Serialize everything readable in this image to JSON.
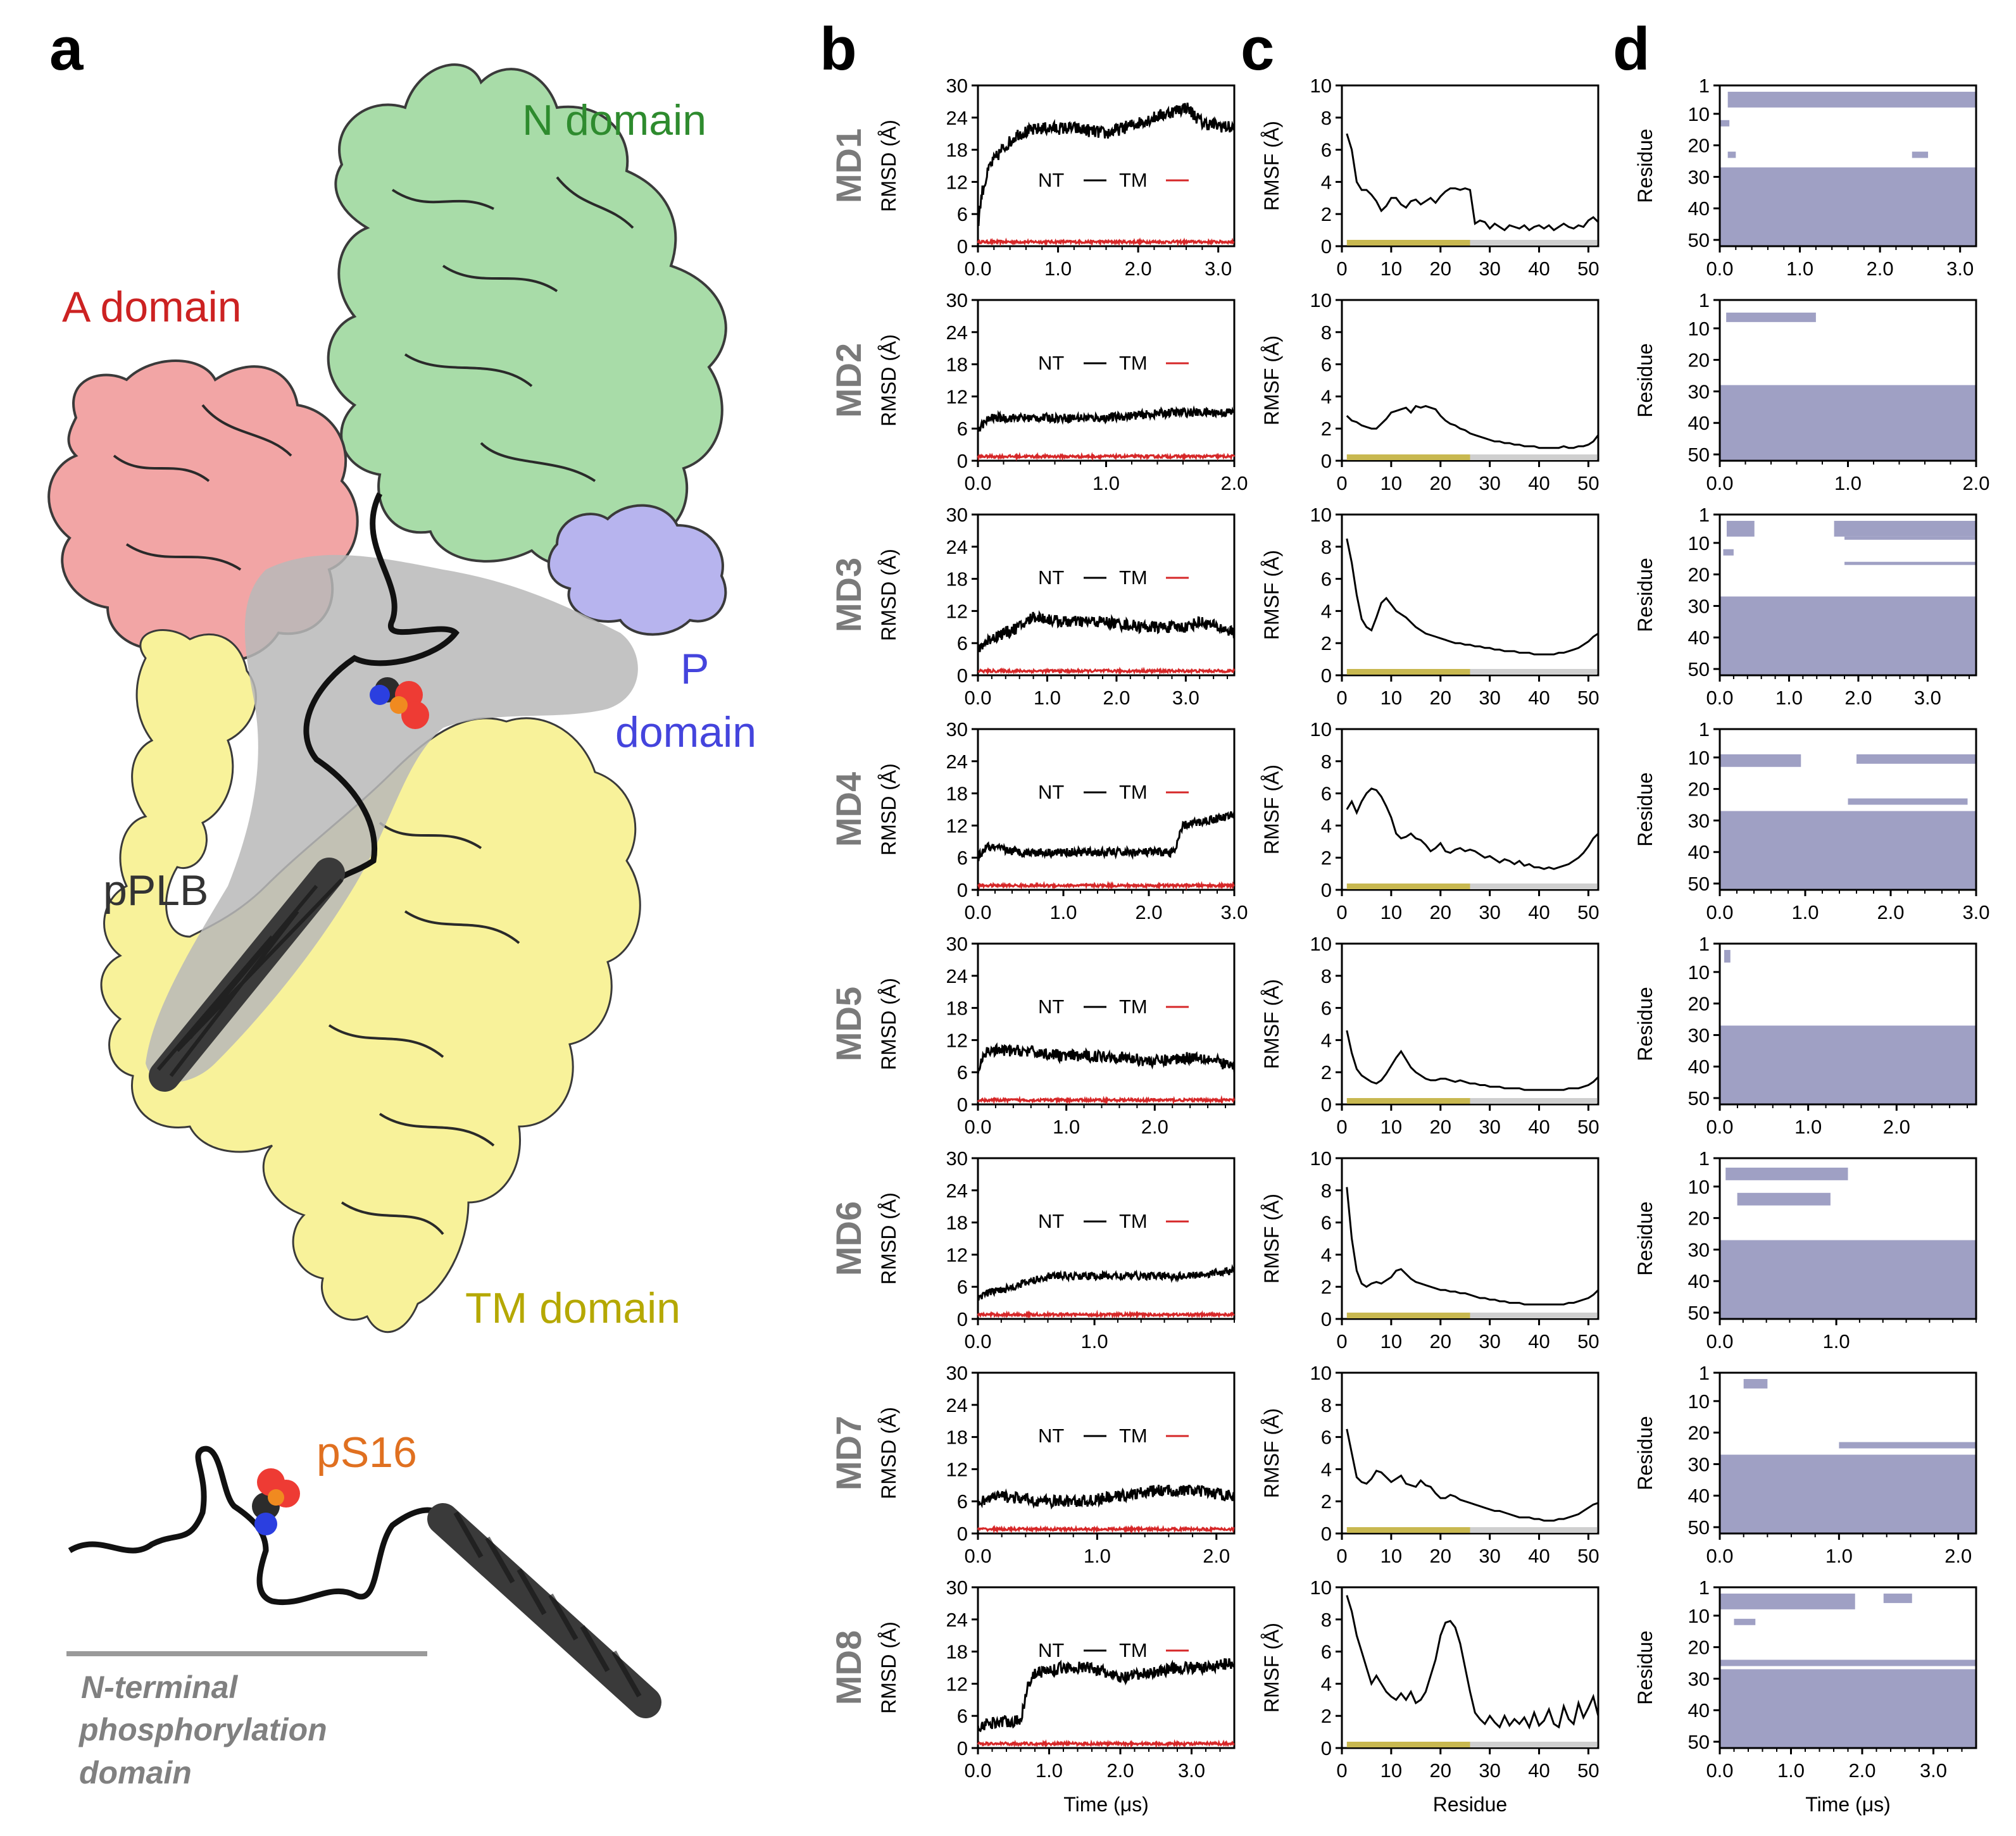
{
  "panel_labels": {
    "a": "a",
    "b": "b",
    "c": "c",
    "d": "d"
  },
  "structure": {
    "n_domain": "N domain",
    "a_domain": "A domain",
    "p_domain_line1": "P",
    "p_domain_line2": "domain",
    "ppl_b": "pPLB",
    "tm_domain": "TM domain",
    "ps16": "pS16",
    "nterm_line1": "N-terminal",
    "nterm_line2": "phosphorylation",
    "nterm_line3": "domain",
    "colors": {
      "n_domain": "#2e8b2e",
      "a_domain": "#cc2222",
      "p_domain": "#4444dd",
      "tm_domain": "#b5a800",
      "ps16": "#e07020",
      "nterm": "#808080"
    }
  },
  "axis_labels": {
    "rmsd_y": "RMSD (Å)",
    "rmsf_y": "RMSF (Å)",
    "contact_y": "Residue",
    "time_x": "Time (μs)",
    "residue_x": "Residue"
  },
  "legend": {
    "nt": "NT",
    "tm": "TM",
    "nt_color": "#000000",
    "tm_color": "#d62728"
  },
  "chart_data": {
    "simulations": [
      {
        "name": "MD1",
        "duration_us": 3.2,
        "time_ticks": [
          "0.0",
          "1.0",
          "2.0",
          "3.0"
        ],
        "time_tick_values": [
          0,
          1,
          2,
          3
        ],
        "rmsd_nt_profile": [
          [
            0,
            4
          ],
          [
            0.05,
            10
          ],
          [
            0.15,
            15
          ],
          [
            0.3,
            18
          ],
          [
            0.5,
            21
          ],
          [
            0.8,
            22
          ],
          [
            1.2,
            22
          ],
          [
            1.6,
            21
          ],
          [
            2.0,
            23
          ],
          [
            2.4,
            25
          ],
          [
            2.6,
            26
          ],
          [
            2.8,
            23
          ],
          [
            3.2,
            22
          ]
        ],
        "rmsd_noise": 1.2,
        "rmsf": [
          7,
          6,
          4,
          3.5,
          3.5,
          3.2,
          2.8,
          2.2,
          2.5,
          3,
          3,
          2.6,
          2.4,
          2.8,
          2.9,
          2.6,
          2.8,
          3,
          2.7,
          3.1,
          3.4,
          3.6,
          3.6,
          3.5,
          3.6,
          3.5,
          1.4,
          1.6,
          1.5,
          1.1,
          1.4,
          1.2,
          1,
          1.3,
          1.2,
          1.1,
          1.3,
          1,
          1.2,
          1.3,
          1.1,
          1.3,
          1,
          1.2,
          1.4,
          1.2,
          1.1,
          1.3,
          1.2,
          1.6,
          1.8,
          1.5
        ],
        "contact_bands": [
          [
            3,
            8,
            0.1,
            3.2
          ],
          [
            12,
            14,
            0,
            0.12
          ],
          [
            22,
            24,
            0.1,
            0.2
          ],
          [
            22,
            24,
            2.4,
            2.6
          ],
          [
            27,
            52,
            0,
            3.2
          ]
        ]
      },
      {
        "name": "MD2",
        "duration_us": 2.0,
        "time_ticks": [
          "0.0",
          "1.0",
          "2.0"
        ],
        "time_tick_values": [
          0,
          1,
          2
        ],
        "rmsd_nt_profile": [
          [
            0,
            6
          ],
          [
            0.1,
            8
          ],
          [
            0.5,
            8
          ],
          [
            1.0,
            8
          ],
          [
            1.5,
            9
          ],
          [
            2.0,
            9
          ]
        ],
        "rmsd_noise": 0.8,
        "rmsf": [
          2.8,
          2.5,
          2.4,
          2.2,
          2.1,
          2,
          2,
          2.3,
          2.6,
          3,
          3.1,
          3.2,
          3.3,
          3,
          3.4,
          3.3,
          3.4,
          3.3,
          3.2,
          2.8,
          2.5,
          2.3,
          2.2,
          2,
          1.9,
          1.7,
          1.6,
          1.5,
          1.4,
          1.3,
          1.2,
          1.2,
          1.1,
          1.1,
          1,
          1,
          0.9,
          0.9,
          0.9,
          0.8,
          0.8,
          0.8,
          0.8,
          0.8,
          0.9,
          0.8,
          0.8,
          0.9,
          0.9,
          1,
          1.2,
          1.6
        ],
        "contact_bands": [
          [
            5,
            8,
            0.05,
            0.75
          ],
          [
            28,
            52,
            0,
            2.0
          ]
        ]
      },
      {
        "name": "MD3",
        "duration_us": 3.7,
        "time_ticks": [
          "0.0",
          "1.0",
          "2.0",
          "3.0"
        ],
        "time_tick_values": [
          0,
          1,
          2,
          3
        ],
        "rmsd_nt_profile": [
          [
            0,
            5
          ],
          [
            0.2,
            7
          ],
          [
            0.6,
            9
          ],
          [
            0.8,
            11
          ],
          [
            1.2,
            10
          ],
          [
            1.8,
            10
          ],
          [
            2.4,
            9
          ],
          [
            3.0,
            9
          ],
          [
            3.2,
            10
          ],
          [
            3.7,
            8
          ]
        ],
        "rmsd_noise": 1.1,
        "rmsf": [
          8.5,
          7,
          5,
          3.5,
          3,
          2.8,
          3.6,
          4.5,
          4.8,
          4.4,
          4,
          3.8,
          3.6,
          3.3,
          3,
          2.8,
          2.6,
          2.5,
          2.4,
          2.3,
          2.2,
          2.1,
          2,
          2,
          1.9,
          1.9,
          1.8,
          1.8,
          1.7,
          1.7,
          1.6,
          1.6,
          1.5,
          1.5,
          1.5,
          1.4,
          1.4,
          1.4,
          1.3,
          1.3,
          1.3,
          1.3,
          1.3,
          1.4,
          1.4,
          1.5,
          1.6,
          1.7,
          1.9,
          2.1,
          2.4,
          2.6
        ],
        "contact_bands": [
          [
            3,
            8,
            0.1,
            0.5
          ],
          [
            3,
            8,
            1.65,
            3.7
          ],
          [
            12,
            14,
            0.05,
            0.2
          ],
          [
            8,
            9,
            1.8,
            3.7
          ],
          [
            16,
            17,
            1.8,
            3.7
          ],
          [
            27,
            52,
            0,
            3.7
          ]
        ]
      },
      {
        "name": "MD4",
        "duration_us": 3.0,
        "time_ticks": [
          "0.0",
          "1.0",
          "2.0",
          "3.0"
        ],
        "time_tick_values": [
          0,
          1,
          2,
          3
        ],
        "rmsd_nt_profile": [
          [
            0,
            6
          ],
          [
            0.1,
            8
          ],
          [
            0.5,
            7
          ],
          [
            1.0,
            7
          ],
          [
            1.5,
            7
          ],
          [
            2.0,
            7
          ],
          [
            2.3,
            7
          ],
          [
            2.4,
            12
          ],
          [
            2.7,
            13
          ],
          [
            3.0,
            14
          ]
        ],
        "rmsd_noise": 0.8,
        "rmsf": [
          5,
          5.5,
          4.8,
          5.5,
          6,
          6.3,
          6.2,
          5.8,
          5.2,
          4.5,
          3.5,
          3.2,
          3.3,
          3.5,
          3.2,
          3.1,
          2.8,
          2.4,
          2.6,
          2.9,
          2.4,
          2.3,
          2.5,
          2.6,
          2.4,
          2.5,
          2.4,
          2.2,
          2,
          2.1,
          1.9,
          1.7,
          1.9,
          1.8,
          1.6,
          1.8,
          1.5,
          1.6,
          1.4,
          1.4,
          1.3,
          1.4,
          1.3,
          1.4,
          1.5,
          1.6,
          1.8,
          2,
          2.3,
          2.7,
          3.2,
          3.5
        ],
        "contact_bands": [
          [
            9,
            13,
            0,
            0.95
          ],
          [
            9,
            12,
            1.6,
            3.0
          ],
          [
            23,
            25,
            1.5,
            2.9
          ],
          [
            27,
            52,
            0,
            3.0
          ]
        ]
      },
      {
        "name": "MD5",
        "duration_us": 2.9,
        "time_ticks": [
          "0.0",
          "1.0",
          "2.0"
        ],
        "time_tick_values": [
          0,
          1,
          2
        ],
        "rmsd_nt_profile": [
          [
            0,
            6
          ],
          [
            0.1,
            10
          ],
          [
            0.5,
            10
          ],
          [
            1.0,
            9
          ],
          [
            1.5,
            9
          ],
          [
            2.0,
            8
          ],
          [
            2.5,
            9
          ],
          [
            2.9,
            7
          ]
        ],
        "rmsd_noise": 1.1,
        "rmsf": [
          4.6,
          3.2,
          2.2,
          1.8,
          1.6,
          1.4,
          1.3,
          1.5,
          1.9,
          2.4,
          2.9,
          3.3,
          2.8,
          2.3,
          2,
          1.8,
          1.6,
          1.5,
          1.5,
          1.6,
          1.6,
          1.5,
          1.4,
          1.5,
          1.4,
          1.3,
          1.3,
          1.2,
          1.2,
          1.1,
          1.1,
          1.1,
          1,
          1,
          1,
          1,
          0.9,
          0.9,
          0.9,
          0.9,
          0.9,
          0.9,
          0.9,
          0.9,
          0.9,
          1,
          1,
          1,
          1.1,
          1.2,
          1.4,
          1.7
        ],
        "contact_bands": [
          [
            3,
            7,
            0.05,
            0.12
          ],
          [
            27,
            52,
            0,
            2.9
          ]
        ]
      },
      {
        "name": "MD6",
        "duration_us": 2.2,
        "time_ticks": [
          "0.0",
          "1.0"
        ],
        "time_tick_values": [
          0,
          1
        ],
        "rmsd_nt_profile": [
          [
            0,
            4
          ],
          [
            0.1,
            5
          ],
          [
            0.3,
            6
          ],
          [
            0.6,
            8
          ],
          [
            1.0,
            8
          ],
          [
            1.4,
            8
          ],
          [
            1.8,
            8
          ],
          [
            2.2,
            9
          ]
        ],
        "rmsd_noise": 0.7,
        "rmsf": [
          8.2,
          5,
          3,
          2.2,
          2,
          2.2,
          2.3,
          2.2,
          2.4,
          2.6,
          3,
          3.1,
          2.8,
          2.5,
          2.3,
          2.2,
          2.1,
          2,
          1.9,
          1.8,
          1.8,
          1.7,
          1.7,
          1.6,
          1.6,
          1.5,
          1.4,
          1.3,
          1.3,
          1.2,
          1.2,
          1.1,
          1.1,
          1,
          1,
          1,
          0.9,
          0.9,
          0.9,
          0.9,
          0.9,
          0.9,
          0.9,
          0.9,
          0.9,
          1,
          1,
          1.1,
          1.2,
          1.3,
          1.5,
          1.8
        ],
        "contact_bands": [
          [
            4,
            8,
            0.05,
            1.1
          ],
          [
            12,
            16,
            0.15,
            0.95
          ],
          [
            27,
            52,
            0,
            2.2
          ]
        ]
      },
      {
        "name": "MD7",
        "duration_us": 2.15,
        "time_ticks": [
          "0.0",
          "1.0",
          "2.0"
        ],
        "time_tick_values": [
          0,
          1,
          2
        ],
        "rmsd_nt_profile": [
          [
            0,
            6
          ],
          [
            0.2,
            7
          ],
          [
            0.5,
            6
          ],
          [
            0.9,
            6
          ],
          [
            1.2,
            7
          ],
          [
            1.5,
            8
          ],
          [
            1.8,
            8
          ],
          [
            2.15,
            7
          ]
        ],
        "rmsd_noise": 1.1,
        "rmsf": [
          6.5,
          5,
          3.5,
          3.2,
          3.1,
          3.4,
          3.9,
          3.8,
          3.5,
          3.2,
          3.4,
          3.6,
          3.1,
          3,
          2.9,
          3.3,
          3,
          2.9,
          2.5,
          2.2,
          2.2,
          2.4,
          2.3,
          2.1,
          2,
          1.9,
          1.8,
          1.7,
          1.6,
          1.5,
          1.4,
          1.4,
          1.3,
          1.2,
          1.1,
          1,
          1,
          1,
          0.9,
          0.9,
          0.8,
          0.8,
          0.8,
          0.9,
          0.9,
          1,
          1.1,
          1.2,
          1.4,
          1.6,
          1.8,
          1.9
        ],
        "contact_bands": [
          [
            3,
            6,
            0.2,
            0.4
          ],
          [
            23,
            25,
            1.0,
            2.15
          ],
          [
            27,
            52,
            0,
            2.15
          ]
        ]
      },
      {
        "name": "MD8",
        "duration_us": 3.6,
        "time_ticks": [
          "0.0",
          "1.0",
          "2.0",
          "3.0"
        ],
        "time_tick_values": [
          0,
          1,
          2,
          3
        ],
        "rmsd_nt_profile": [
          [
            0,
            4
          ],
          [
            0.3,
            5
          ],
          [
            0.6,
            5
          ],
          [
            0.7,
            12
          ],
          [
            0.8,
            14
          ],
          [
            1.2,
            15
          ],
          [
            1.6,
            15
          ],
          [
            2.0,
            13
          ],
          [
            2.4,
            14
          ],
          [
            2.8,
            15
          ],
          [
            3.2,
            15
          ],
          [
            3.6,
            16
          ]
        ],
        "rmsd_noise": 1.1,
        "rmsf": [
          9.5,
          8.5,
          7,
          6,
          5,
          4,
          4.5,
          4,
          3.5,
          3.2,
          3,
          3.4,
          3,
          3.5,
          2.8,
          3,
          3.5,
          4.5,
          5.5,
          7,
          7.8,
          7.9,
          7.5,
          6.5,
          5,
          3.5,
          2.2,
          1.8,
          1.5,
          2,
          1.6,
          1.3,
          2,
          1.4,
          1.8,
          1.5,
          1.9,
          1.3,
          2.2,
          1.4,
          1.7,
          2.4,
          1.5,
          1.3,
          2.6,
          1.8,
          1.5,
          2.8,
          1.9,
          2.5,
          3.2,
          2
        ],
        "contact_bands": [
          [
            3,
            8,
            0,
            1.9
          ],
          [
            3,
            6,
            2.3,
            2.7
          ],
          [
            11,
            13,
            0.2,
            0.5
          ],
          [
            24,
            26,
            0,
            3.6
          ],
          [
            27,
            52,
            0,
            3.6
          ]
        ]
      }
    ],
    "rmsd_axis": {
      "ylim": [
        0,
        30
      ],
      "yticks": [
        "0",
        "6",
        "12",
        "18",
        "24",
        "30"
      ],
      "ytick_values": [
        0,
        6,
        12,
        18,
        24,
        30
      ],
      "tm_level": 0.8
    },
    "rmsf_axis": {
      "ylim": [
        0,
        10
      ],
      "yticks": [
        "0",
        "2",
        "4",
        "6",
        "8",
        "10"
      ],
      "ytick_values": [
        0,
        2,
        4,
        6,
        8,
        10
      ],
      "xlim": [
        0,
        52
      ],
      "xticks": [
        "0",
        "10",
        "20",
        "30",
        "40",
        "50"
      ],
      "xtick_values": [
        0,
        10,
        20,
        30,
        40,
        50
      ],
      "nt_region": [
        1,
        26
      ],
      "nt_color": "#c8b850",
      "tm_color": "#cfcfcf"
    },
    "contact_axis": {
      "ylim": [
        1,
        52
      ],
      "yticks": [
        "1",
        "10",
        "20",
        "30",
        "40",
        "50"
      ],
      "ytick_values": [
        1,
        10,
        20,
        30,
        40,
        50
      ],
      "fill_color": "#9fa0c4"
    }
  }
}
